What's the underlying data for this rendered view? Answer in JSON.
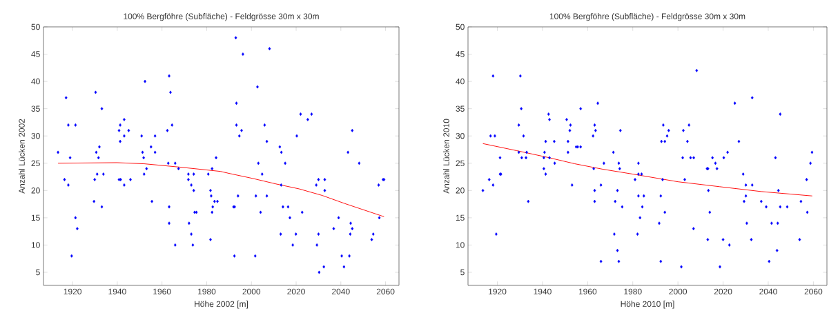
{
  "chart_data": [
    {
      "type": "scatter",
      "title": "100% Bergföhre (Subfläche) - Feldgrösse 30m x 30m",
      "xlabel": "Höhe 2002 [m]",
      "ylabel": "Anzahl Lücken 2002",
      "xlim": [
        1907,
        2066
      ],
      "ylim": [
        2.6,
        50
      ],
      "xticks": [
        1920,
        1940,
        1960,
        1980,
        2000,
        2020,
        2040,
        2060
      ],
      "yticks": [
        5,
        10,
        15,
        20,
        25,
        30,
        35,
        40,
        45,
        50
      ],
      "marker": "diamond",
      "series": [
        {
          "type": "scatter",
          "color": "#0000ff",
          "x": [
            1913.5,
            1917.1,
            1916.4,
            1918.1,
            1918.9,
            1918.1,
            1919.6,
            1921.3,
            1921.3,
            1922.1,
            1930.3,
            1933.1,
            1932.0,
            1930.6,
            1931.6,
            1931.0,
            1933.8,
            1929.9,
            1929.6,
            1933.1,
            1940.8,
            1941.3,
            1943.1,
            1945.1,
            1943.1,
            1941.3,
            1940.8,
            1941.5,
            1945.9,
            1943.1,
            1952.4,
            1950.9,
            1951.3,
            1951.8,
            1953.1,
            1952.0,
            1955.1,
            1956.9,
            1956.9,
            1955.5,
            1963.2,
            1963.8,
            1964.5,
            1962.4,
            1962.8,
            1965.9,
            1967.4,
            1963.2,
            1963.2,
            1965.9,
            1971.8,
            1974.2,
            1971.8,
            1973.1,
            1974.2,
            1974.6,
            1975.4,
            1972.1,
            1973.1,
            1973.8,
            1980.7,
            1982.4,
            1984.2,
            1981.7,
            1982.0,
            1983.5,
            1984.8,
            1982.7,
            1982.4,
            1981.7,
            1993.0,
            1996.2,
            2008.1,
            2002.7,
            1993.3,
            1993.3,
            1995.6,
            1994.6,
            2005.9,
            2006.9,
            2003.1,
            2004.8,
            1994.0,
            2002.0,
            2006.9,
            1992.0,
            1992.5,
            2004.1,
            1992.4,
            2001.7,
            2022.0,
            2026.9,
            2025.2,
            2020.3,
            2012.7,
            2013.4,
            2015.1,
            2013.3,
            2014.1,
            2016.4,
            2017.2,
            2022.7,
            2013.1,
            2019.9,
            2018.5,
            2030.0,
            2032.8,
            2029.0,
            2032.8,
            2039.0,
            2036.8,
            2044.4,
            2045.1,
            2044.2,
            2030.0,
            2029.3,
            2040.4,
            2043.8,
            2032.4,
            2041.4,
            2030.3,
            2045.1,
            2043.2,
            2048.2,
            2056.9,
            2058.9,
            2059.3,
            2057.2,
            2054.5,
            2053.8
          ],
          "values": [
            27,
            37,
            22,
            32,
            26,
            21,
            8,
            32,
            15,
            13,
            38,
            35,
            28,
            27,
            26,
            23,
            23,
            22,
            18,
            17,
            31,
            32,
            33,
            31,
            30,
            29,
            22,
            22,
            22,
            21,
            40,
            30,
            27,
            26,
            24,
            23,
            28,
            30,
            27,
            18,
            41,
            38,
            32,
            31,
            25,
            25,
            24,
            17,
            14,
            10,
            23,
            23,
            22,
            21,
            20,
            16,
            16,
            14,
            12,
            10,
            23,
            24,
            26,
            20,
            19,
            18,
            18,
            17,
            16,
            11,
            48,
            45,
            46,
            39,
            36,
            32,
            31,
            30,
            32,
            29,
            25,
            23,
            19,
            19,
            19,
            17,
            17,
            16,
            8,
            8,
            34,
            34,
            33,
            30,
            28,
            27,
            25,
            21,
            17,
            17,
            15,
            16,
            12,
            12,
            10,
            22,
            22,
            21,
            20,
            15,
            13,
            14,
            13,
            12,
            12,
            10,
            8,
            8,
            6,
            6,
            5,
            31,
            27,
            25,
            21,
            22,
            22,
            15,
            12,
            11
          ]
        },
        {
          "type": "line",
          "color": "#ff0000",
          "marker": "none",
          "x": [
            1913.5,
            1939.8,
            1952.0,
            1967.6,
            1986.1,
            1990.4,
            2000.7,
            2011.0,
            2021.3,
            2031.6,
            2041.8,
            2059.3
          ],
          "values": [
            25.0,
            25.1,
            24.9,
            24.3,
            23.5,
            23.1,
            22.2,
            21.2,
            20.3,
            19.1,
            17.6,
            15.2
          ]
        }
      ]
    },
    {
      "type": "scatter",
      "title": "100% Bergföhre (Subfläche) - Feldgrösse 30m x 30m",
      "xlabel": "Höhe 2010 [m]",
      "ylabel": "Anzahl Lücken 2010",
      "xlim": [
        1907,
        2066
      ],
      "ylim": [
        2.6,
        50
      ],
      "xticks": [
        1920,
        1940,
        1960,
        1980,
        2000,
        2020,
        2040,
        2060
      ],
      "yticks": [
        5,
        10,
        15,
        20,
        25,
        30,
        35,
        40,
        45,
        50
      ],
      "marker": "diamond",
      "series": [
        {
          "type": "scatter",
          "color": "#0000ff",
          "x": [
            1913.6,
            1916.4,
            1918.1,
            1917.0,
            1918.9,
            1918.1,
            1921.2,
            1921.2,
            1921.6,
            1919.5,
            1930.2,
            1930.6,
            1929.5,
            1931.6,
            1929.5,
            1933.0,
            1930.8,
            1932.7,
            1933.7,
            1942.7,
            1943.1,
            1941.4,
            1945.2,
            1940.9,
            1940.6,
            1943.1,
            1945.4,
            1940.6,
            1941.4,
            1950.7,
            1952.4,
            1952.1,
            1951.3,
            1951.3,
            1954.9,
            1955.6,
            1956.9,
            1956.9,
            1953.1,
            1964.5,
            1963.1,
            1963.5,
            1962.4,
            1962.7,
            1963.1,
            1963.1,
            1967.2,
            1965.9,
            1965.9,
            1974.5,
            1971.4,
            1973.8,
            1974.2,
            1973.2,
            1972.2,
            1975.3,
            1971.8,
            1973.2,
            1973.8,
            1981.0,
            1982.5,
            1982.5,
            1983.9,
            1982.5,
            1984.9,
            1984.2,
            1983.2,
            1982.1,
            1993.5,
            1992.7,
            1994.2,
            1995.2,
            1995.9,
            1993.2,
            1992.4,
            1994.2,
            1991.7,
            1992.4,
            2001.5,
            2002.4,
            2004.9,
            2004.2,
            2002.1,
            2005.6,
            2007.0,
            2003.0,
            2008.3,
            2006.9,
            2012.9,
            2013.3,
            2013.5,
            2014.1,
            2013.2,
            2015.3,
            2016.6,
            2017.3,
            2018.6,
            2020.3,
            2022.0,
            2020.0,
            2022.8,
            2025.2,
            2027.0,
            2032.9,
            2028.9,
            2030.1,
            2032.9,
            2030.1,
            2029.3,
            2030.5,
            2032.5,
            2045.3,
            2043.2,
            2044.5,
            2036.9,
            2039.1,
            2045.3,
            2048.4,
            2041.5,
            2044.2,
            2043.9,
            2040.4,
            2053.9,
            2054.5,
            2057.0,
            2057.3,
            2058.7,
            2059.4
          ],
          "values": [
            20,
            22,
            41,
            30,
            30,
            21,
            26,
            23,
            23,
            12,
            41,
            35,
            32,
            30,
            27,
            27,
            26,
            26,
            18,
            34,
            33,
            29,
            29,
            27,
            26,
            26,
            25,
            24,
            23,
            33,
            32,
            31,
            29,
            27,
            28,
            28,
            28,
            35,
            21,
            36,
            32,
            31,
            30,
            24,
            20,
            18,
            25,
            21,
            7,
            31,
            27,
            25,
            24,
            20,
            18,
            17,
            12,
            9,
            7,
            22,
            25,
            23,
            23,
            19,
            19,
            17,
            15,
            12,
            32,
            29,
            29,
            30,
            31,
            22,
            19,
            16,
            14,
            7,
            6,
            31,
            32,
            29,
            26,
            26,
            26,
            22,
            42,
            13,
            24,
            24,
            20,
            16,
            11,
            26,
            25,
            24,
            6,
            26,
            27,
            11,
            10,
            36,
            29,
            37,
            23,
            21,
            21,
            19,
            18,
            14,
            11,
            34,
            26,
            20,
            18,
            17,
            17,
            17,
            14,
            14,
            9,
            7,
            11,
            18,
            22,
            16,
            25,
            27
          ]
        },
        {
          "type": "line",
          "color": "#ff0000",
          "marker": "none",
          "x": [
            1913.6,
            1928.6,
            1942.0,
            1954.3,
            1966.7,
            1980.1,
            2000.0,
            2018.4,
            2037.0,
            2059.5
          ],
          "values": [
            28.6,
            27.3,
            26.1,
            24.9,
            23.9,
            23.0,
            21.6,
            20.7,
            19.8,
            19.0
          ]
        }
      ]
    }
  ]
}
